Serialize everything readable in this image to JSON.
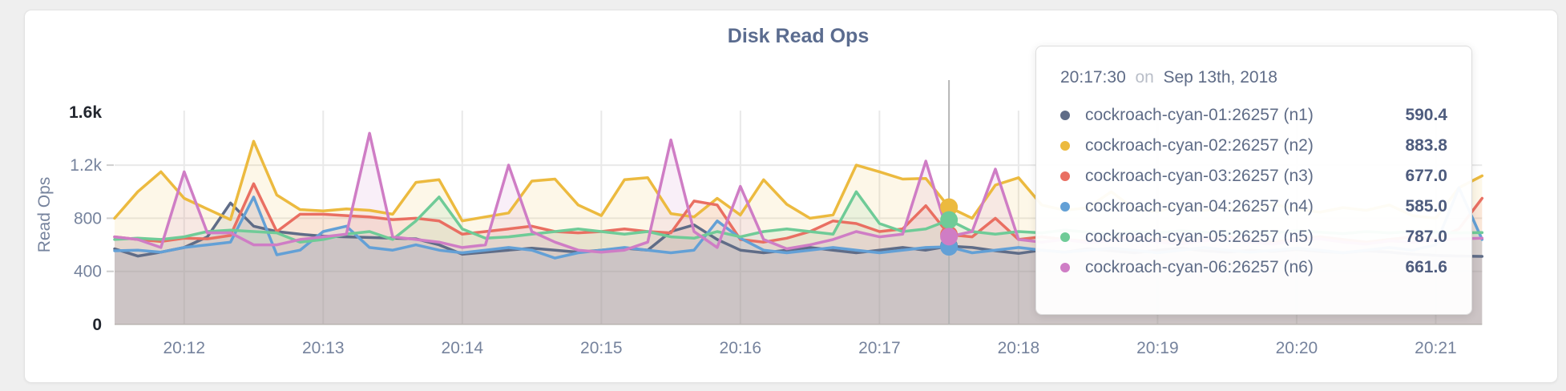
{
  "tooltip": {
    "time": "20:17:30",
    "conjunction": "on",
    "date": "Sep 13th, 2018",
    "values": [
      "590.4",
      "883.8",
      "677.0",
      "585.0",
      "787.0",
      "661.6"
    ]
  },
  "chart_data": {
    "type": "line",
    "title": "Disk Read Ops",
    "ylabel": "Read Ops",
    "ylim": [
      0,
      1600
    ],
    "grid": true,
    "time_start": "20:11:30",
    "interval_seconds": 10,
    "hover_index": 36,
    "hover_time": "20:17:30",
    "colors": {
      "grid": "#e9e9e9",
      "baseline": "#d8d8d4",
      "tick_dash": "#cfcfcf",
      "tick_text": "#76839d",
      "tick_text_emphasis": "#22262e",
      "crosshair": "#b5b5b5",
      "title": "#5b6c8f"
    },
    "y_ticks": [
      {
        "label": "0",
        "value": 0,
        "emphasis": true,
        "dash": false,
        "gridline": false
      },
      {
        "label": "400",
        "value": 400,
        "emphasis": false,
        "dash": true,
        "gridline": true
      },
      {
        "label": "800",
        "value": 800,
        "emphasis": false,
        "dash": true,
        "gridline": true
      },
      {
        "label": "1.2k",
        "value": 1200,
        "emphasis": false,
        "dash": true,
        "gridline": true
      },
      {
        "label": "1.6k",
        "value": 1600,
        "emphasis": true,
        "dash": false,
        "gridline": false
      }
    ],
    "x_ticks": [
      {
        "label": "20:12",
        "index": 3
      },
      {
        "label": "20:13",
        "index": 9
      },
      {
        "label": "20:14",
        "index": 15
      },
      {
        "label": "20:15",
        "index": 21
      },
      {
        "label": "20:16",
        "index": 27
      },
      {
        "label": "20:17",
        "index": 33
      },
      {
        "label": "20:18",
        "index": 39
      },
      {
        "label": "20:19",
        "index": 45
      },
      {
        "label": "20:20",
        "index": 51
      },
      {
        "label": "20:21",
        "index": 57
      }
    ],
    "series": [
      {
        "id": "n1",
        "name": "cockroach-cyan-01:26257 (n1)",
        "color": "#5f6c87",
        "values": [
          570,
          515,
          545,
          580,
          660,
          915,
          740,
          700,
          680,
          665,
          660,
          655,
          650,
          645,
          600,
          530,
          545,
          560,
          575,
          560,
          545,
          560,
          575,
          560,
          700,
          750,
          640,
          560,
          540,
          560,
          580,
          560,
          540,
          560,
          580,
          560,
          590.4,
          580,
          555,
          535,
          560,
          545,
          570,
          555,
          540,
          560,
          575,
          555,
          545,
          560,
          550,
          565,
          550,
          540,
          555,
          545,
          530,
          520,
          515,
          513
        ]
      },
      {
        "id": "n2",
        "name": "cockroach-cyan-02:26257 (n2)",
        "color": "#ecba3f",
        "values": [
          800,
          1000,
          1150,
          950,
          870,
          790,
          1380,
          975,
          865,
          855,
          870,
          860,
          830,
          1070,
          1090,
          780,
          810,
          840,
          1080,
          1095,
          900,
          820,
          1090,
          1105,
          835,
          810,
          950,
          825,
          1090,
          905,
          800,
          825,
          1200,
          1150,
          1095,
          1100,
          883.8,
          800,
          1050,
          1105,
          900,
          860,
          880,
          1000,
          870,
          850,
          900,
          860,
          880,
          855,
          905,
          870,
          845,
          880,
          860,
          900,
          820,
          800,
          1030,
          1120
        ]
      },
      {
        "id": "n3",
        "name": "cockroach-cyan-03:26257 (n3)",
        "color": "#e96f62",
        "values": [
          660,
          640,
          625,
          650,
          645,
          670,
          1060,
          700,
          830,
          830,
          820,
          810,
          790,
          800,
          780,
          680,
          700,
          720,
          740,
          700,
          690,
          700,
          720,
          700,
          690,
          930,
          900,
          640,
          620,
          650,
          700,
          780,
          760,
          700,
          720,
          895,
          677,
          660,
          800,
          640,
          660,
          640,
          625,
          645,
          660,
          640,
          620,
          645,
          660,
          640,
          620,
          645,
          660,
          640,
          620,
          640,
          660,
          640,
          720,
          950
        ]
      },
      {
        "id": "n4",
        "name": "cockroach-cyan-04:26257 (n4)",
        "color": "#63a0d6",
        "values": [
          555,
          560,
          545,
          580,
          600,
          620,
          960,
          525,
          560,
          700,
          740,
          580,
          560,
          600,
          560,
          540,
          560,
          580,
          560,
          500,
          540,
          560,
          580,
          560,
          540,
          560,
          780,
          650,
          560,
          540,
          560,
          580,
          560,
          540,
          560,
          580,
          585,
          540,
          560,
          580,
          560,
          545,
          560,
          575,
          560,
          540,
          560,
          580,
          560,
          545,
          560,
          575,
          560,
          540,
          560,
          580,
          560,
          600,
          1030,
          640
        ]
      },
      {
        "id": "n5",
        "name": "cockroach-cyan-05:26257 (n5)",
        "color": "#6fcb97",
        "values": [
          640,
          650,
          640,
          660,
          700,
          710,
          700,
          690,
          620,
          640,
          680,
          700,
          640,
          780,
          960,
          720,
          650,
          660,
          680,
          700,
          720,
          700,
          680,
          700,
          660,
          650,
          700,
          660,
          700,
          720,
          700,
          680,
          1000,
          760,
          700,
          720,
          787,
          700,
          680,
          700,
          690,
          710,
          695,
          680,
          700,
          690,
          705,
          695,
          685,
          700,
          690,
          705,
          695,
          685,
          700,
          690,
          700,
          695,
          690,
          692
        ]
      },
      {
        "id": "n6",
        "name": "cockroach-cyan-06:26257 (n6)",
        "color": "#cf7dc5",
        "values": [
          660,
          640,
          580,
          1150,
          690,
          690,
          600,
          600,
          640,
          660,
          680,
          1440,
          660,
          640,
          620,
          580,
          600,
          1200,
          700,
          620,
          560,
          545,
          560,
          620,
          1390,
          700,
          580,
          1040,
          640,
          570,
          600,
          640,
          700,
          660,
          680,
          1230,
          661.6,
          700,
          1170,
          640,
          620,
          640,
          615,
          630,
          645,
          620,
          605,
          630,
          645,
          620,
          605,
          630,
          645,
          620,
          605,
          630,
          620,
          635,
          645,
          650
        ]
      }
    ]
  }
}
